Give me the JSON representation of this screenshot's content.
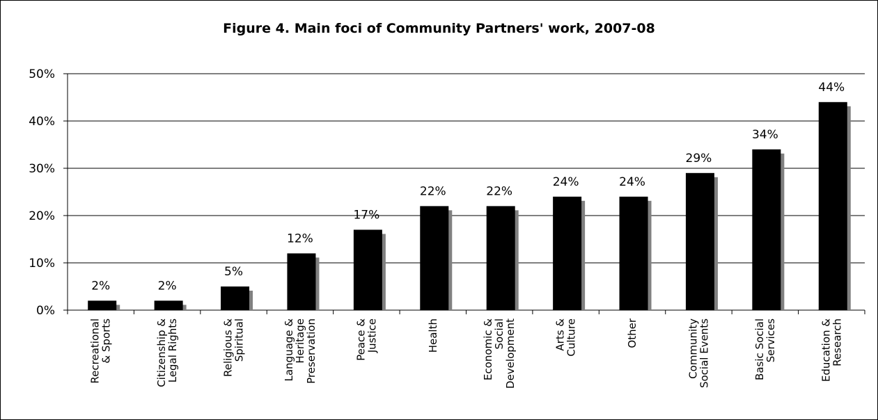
{
  "chart_data": {
    "type": "bar",
    "title": "Figure 4. Main foci of Community Partners' work, 2007-08",
    "xlabel": "",
    "ylabel": "",
    "ylim": [
      0,
      50
    ],
    "y_ticks": [
      "0%",
      "10%",
      "20%",
      "30%",
      "40%",
      "50%"
    ],
    "grid": true,
    "legend": "none",
    "bar_color": "#000000",
    "shadow_color": "#808080",
    "categories": [
      [
        "Recreational",
        "& Sports"
      ],
      [
        "Citizenship &",
        "Legal Rights"
      ],
      [
        "Religious &",
        "Spiritual"
      ],
      [
        "Language &",
        "Heritage",
        "Preservation"
      ],
      [
        "Peace &",
        "Justice"
      ],
      [
        "Health"
      ],
      [
        "Economic &",
        "Social",
        "Development"
      ],
      [
        "Arts &",
        "Culture"
      ],
      [
        "Other"
      ],
      [
        "Community",
        "Social Events"
      ],
      [
        "Basic Social",
        "Services"
      ],
      [
        "Education &",
        "Research"
      ]
    ],
    "values": [
      2,
      2,
      5,
      12,
      17,
      22,
      22,
      24,
      24,
      29,
      34,
      44
    ],
    "data_labels": [
      "2%",
      "2%",
      "5%",
      "12%",
      "17%",
      "22%",
      "22%",
      "24%",
      "24%",
      "29%",
      "34%",
      "44%"
    ]
  }
}
